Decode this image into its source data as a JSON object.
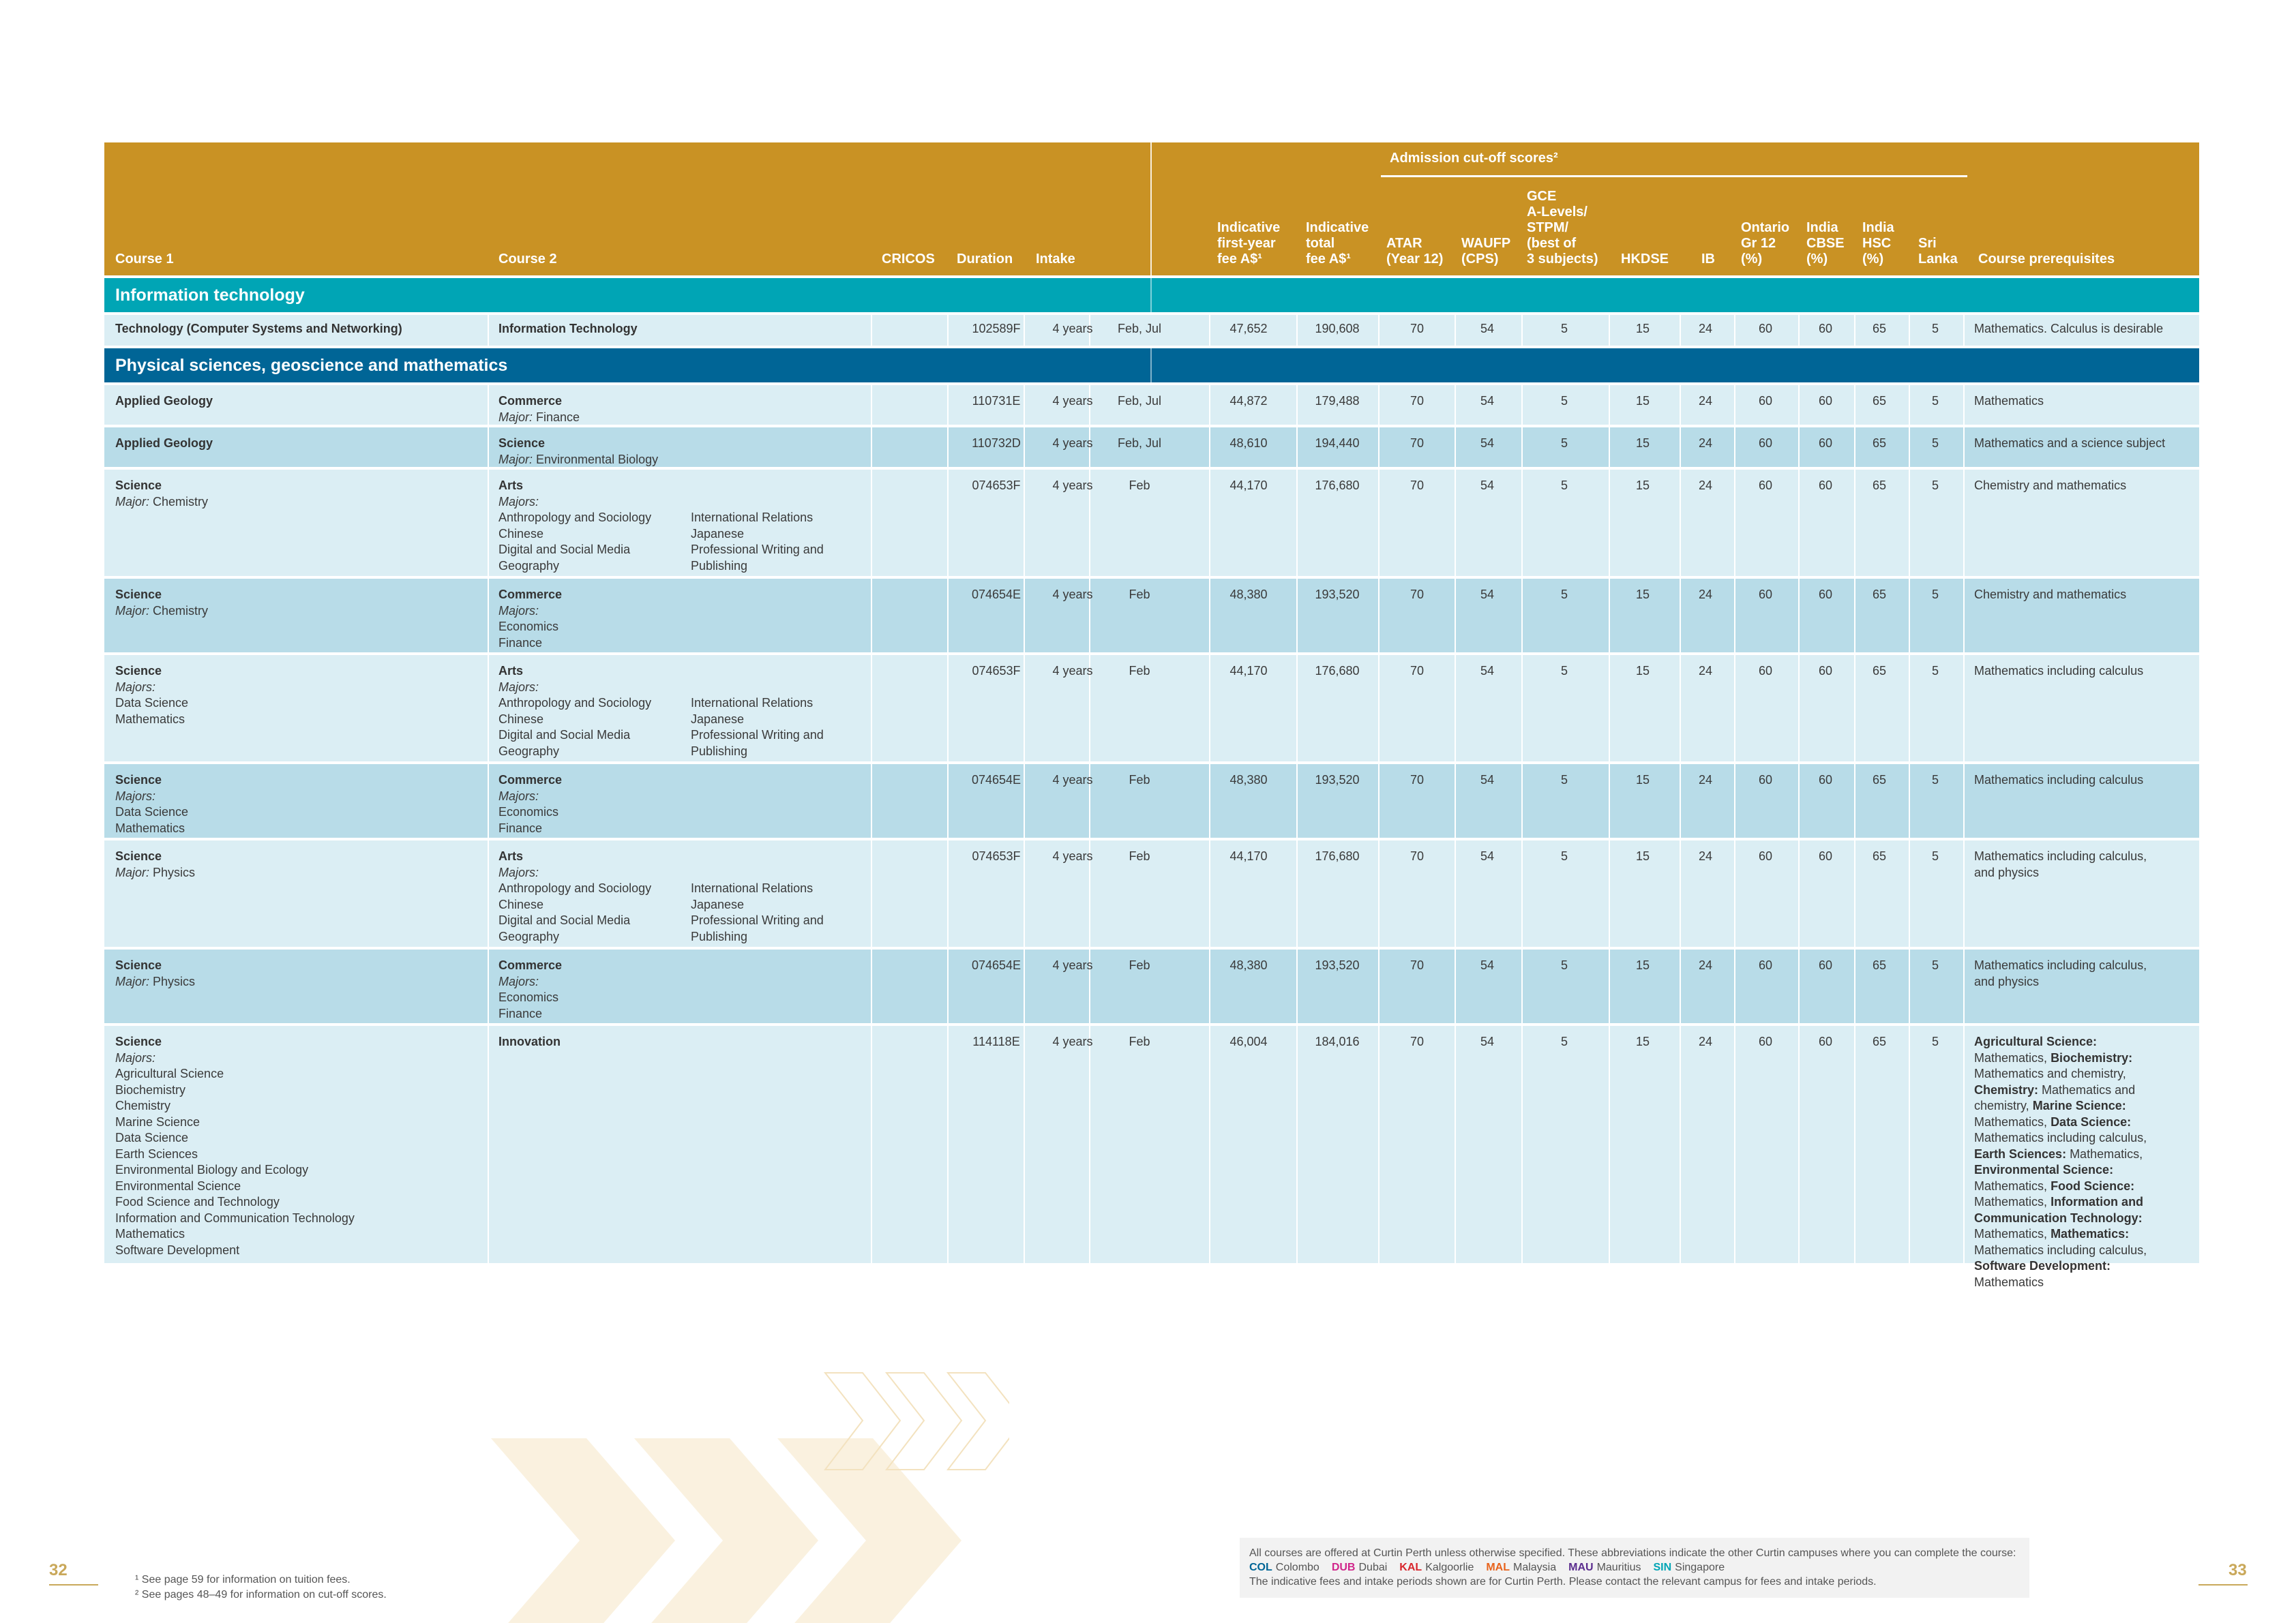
{
  "header": {
    "course1": "Course 1",
    "course2": "Course 2",
    "cricos": "CRICOS",
    "duration": "Duration",
    "intake": "Intake",
    "fee1": "Indicative\nfirst-year\nfee A$¹",
    "fee2": "Indicative\ntotal\nfee A$¹",
    "admission": "Admission cut-off scores²",
    "atar": "ATAR\n(Year 12)",
    "waufp": "WAUFP\n(CPS)",
    "gce": "GCE\nA-Levels/\nSTPM/\n(best of\n3 subjects)",
    "hkdse": "HKDSE",
    "ib": "IB",
    "ontario": "Ontario\nGr 12\n(%)",
    "cbse": "India\nCBSE\n(%)",
    "hsc": "India\nHSC\n(%)",
    "srilanka": "Sri\nLanka",
    "prereq": "Course prerequisites"
  },
  "sections": {
    "it": "Information technology",
    "ps": "Physical sciences, geoscience and mathematics"
  },
  "rows": [
    {
      "c1": "Technology (Computer Systems and Networking)",
      "c1sub": "",
      "c1list": "",
      "c2": "Information Technology",
      "c2sub": "",
      "c2listA": "",
      "c2listB": "",
      "cricos": "102589F",
      "duration": "4 years",
      "intake": "Feb, Jul",
      "fee1": "47,652",
      "fee2": "190,608",
      "atar": "70",
      "waufp": "54",
      "gce": "5",
      "hkdse": "15",
      "ib": "24",
      "ontario": "60",
      "cbse": "60",
      "hsc": "65",
      "sri": "5",
      "prereq": "Mathematics. Calculus is desirable"
    },
    {
      "c1": "Applied Geology",
      "c1sub": "",
      "c1list": "",
      "c2": "Commerce",
      "c2subLabel": "Major:",
      "c2sub": " Finance",
      "c2listA": "",
      "c2listB": "",
      "cricos": "110731E",
      "duration": "4 years",
      "intake": "Feb, Jul",
      "fee1": "44,872",
      "fee2": "179,488",
      "atar": "70",
      "waufp": "54",
      "gce": "5",
      "hkdse": "15",
      "ib": "24",
      "ontario": "60",
      "cbse": "60",
      "hsc": "65",
      "sri": "5",
      "prereq": "Mathematics"
    },
    {
      "c1": "Applied Geology",
      "c1sub": "",
      "c1list": "",
      "c2": "Science",
      "c2subLabel": "Major:",
      "c2sub": " Environmental Biology",
      "c2listA": "",
      "c2listB": "",
      "cricos": "110732D",
      "duration": "4 years",
      "intake": "Feb, Jul",
      "fee1": "48,610",
      "fee2": "194,440",
      "atar": "70",
      "waufp": "54",
      "gce": "5",
      "hkdse": "15",
      "ib": "24",
      "ontario": "60",
      "cbse": "60",
      "hsc": "65",
      "sri": "5",
      "prereq": "Mathematics and a science subject"
    },
    {
      "c1": "Science",
      "c1subLabel": "Major:",
      "c1sub": " Chemistry",
      "c1list": "",
      "c2": "Arts",
      "c2subLabel": "Majors:",
      "c2sub": "",
      "c2listA": "Anthropology and Sociology\nChinese\nDigital and Social Media\nGeography",
      "c2listB": "International Relations\nJapanese\nProfessional Writing and\nPublishing",
      "cricos": "074653F",
      "duration": "4 years",
      "intake": "Feb",
      "fee1": "44,170",
      "fee2": "176,680",
      "atar": "70",
      "waufp": "54",
      "gce": "5",
      "hkdse": "15",
      "ib": "24",
      "ontario": "60",
      "cbse": "60",
      "hsc": "65",
      "sri": "5",
      "prereq": "Chemistry and mathematics"
    },
    {
      "c1": "Science",
      "c1subLabel": "Major:",
      "c1sub": " Chemistry",
      "c1list": "",
      "c2": "Commerce",
      "c2subLabel": "Majors:",
      "c2sub": "",
      "c2listA": "Economics\nFinance",
      "c2listB": "",
      "cricos": "074654E",
      "duration": "4 years",
      "intake": "Feb",
      "fee1": "48,380",
      "fee2": "193,520",
      "atar": "70",
      "waufp": "54",
      "gce": "5",
      "hkdse": "15",
      "ib": "24",
      "ontario": "60",
      "cbse": "60",
      "hsc": "65",
      "sri": "5",
      "prereq": "Chemistry and mathematics"
    },
    {
      "c1": "Science",
      "c1subLabel": "Majors:",
      "c1sub": "",
      "c1list": "Data Science\nMathematics",
      "c2": "Arts",
      "c2subLabel": "Majors:",
      "c2sub": "",
      "c2listA": "Anthropology and Sociology\nChinese\nDigital and Social Media\nGeography",
      "c2listB": "International Relations\nJapanese\nProfessional Writing and\nPublishing",
      "cricos": "074653F",
      "duration": "4 years",
      "intake": "Feb",
      "fee1": "44,170",
      "fee2": "176,680",
      "atar": "70",
      "waufp": "54",
      "gce": "5",
      "hkdse": "15",
      "ib": "24",
      "ontario": "60",
      "cbse": "60",
      "hsc": "65",
      "sri": "5",
      "prereq": "Mathematics including calculus"
    },
    {
      "c1": "Science",
      "c1subLabel": "Majors:",
      "c1sub": "",
      "c1list": "Data Science\nMathematics",
      "c2": "Commerce",
      "c2subLabel": "Majors:",
      "c2sub": "",
      "c2listA": "Economics\nFinance",
      "c2listB": "",
      "cricos": "074654E",
      "duration": "4 years",
      "intake": "Feb",
      "fee1": "48,380",
      "fee2": "193,520",
      "atar": "70",
      "waufp": "54",
      "gce": "5",
      "hkdse": "15",
      "ib": "24",
      "ontario": "60",
      "cbse": "60",
      "hsc": "65",
      "sri": "5",
      "prereq": "Mathematics including calculus"
    },
    {
      "c1": "Science",
      "c1subLabel": "Major:",
      "c1sub": " Physics",
      "c1list": "",
      "c2": "Arts",
      "c2subLabel": "Majors:",
      "c2sub": "",
      "c2listA": "Anthropology and Sociology\nChinese\nDigital and Social Media\nGeography",
      "c2listB": "International Relations\nJapanese\nProfessional Writing and\nPublishing",
      "cricos": "074653F",
      "duration": "4 years",
      "intake": "Feb",
      "fee1": "44,170",
      "fee2": "176,680",
      "atar": "70",
      "waufp": "54",
      "gce": "5",
      "hkdse": "15",
      "ib": "24",
      "ontario": "60",
      "cbse": "60",
      "hsc": "65",
      "sri": "5",
      "prereq": "Mathematics including calculus,\nand physics"
    },
    {
      "c1": "Science",
      "c1subLabel": "Major:",
      "c1sub": " Physics",
      "c1list": "",
      "c2": "Commerce",
      "c2subLabel": "Majors:",
      "c2sub": "",
      "c2listA": "Economics\nFinance",
      "c2listB": "",
      "cricos": "074654E",
      "duration": "4 years",
      "intake": "Feb",
      "fee1": "48,380",
      "fee2": "193,520",
      "atar": "70",
      "waufp": "54",
      "gce": "5",
      "hkdse": "15",
      "ib": "24",
      "ontario": "60",
      "cbse": "60",
      "hsc": "65",
      "sri": "5",
      "prereq": "Mathematics including calculus,\nand physics"
    },
    {
      "c1": "Science",
      "c1subLabel": "Majors:",
      "c1sub": "",
      "c1list": "Agricultural Science\nBiochemistry\nChemistry\nMarine Science\nData Science\nEarth Sciences\nEnvironmental Biology and Ecology\nEnvironmental Science\nFood Science and Technology\nInformation and Communication Technology\nMathematics\nSoftware Development",
      "c2": "Innovation",
      "c2sub": "",
      "c2listA": "",
      "c2listB": "",
      "cricos": "114118E",
      "duration": "4 years",
      "intake": "Feb",
      "fee1": "46,004",
      "fee2": "184,016",
      "atar": "70",
      "waufp": "54",
      "gce": "5",
      "hkdse": "15",
      "ib": "24",
      "ontario": "60",
      "cbse": "60",
      "hsc": "65",
      "sri": "5",
      "prereq": ""
    }
  ],
  "last_prereq": [
    {
      "b": "Agricultural Science:",
      "t": " Mathematics,"
    },
    {
      "b": "Biochemistry:",
      "t": " Mathematics and chemistry,"
    },
    {
      "b": "Chemistry:",
      "t": " Mathematics and chemistry,"
    },
    {
      "b": "Marine Science:",
      "t": " Mathematics,"
    },
    {
      "b": "Data Science:",
      "t": " Mathematics including calculus,"
    },
    {
      "b": "Earth Sciences:",
      "t": " Mathematics,"
    },
    {
      "b": "Environmental Science:",
      "t": " Mathematics,"
    },
    {
      "b": "Food Science:",
      "t": " Mathematics,"
    },
    {
      "b": "Information and Communication Technology:",
      "t": " Mathematics,"
    },
    {
      "b": "Mathematics:",
      "t": " Mathematics including calculus,"
    },
    {
      "b": "Software Development:",
      "t": " Mathematics"
    }
  ],
  "footer": {
    "page_left": "32",
    "page_right": "33",
    "note1": "¹ See page 59 for information on tuition fees.",
    "note2": "² See pages 48–49 for information on cut-off scores.",
    "box_line1": "All courses are offered at Curtin Perth unless otherwise specified. These abbreviations indicate the other Curtin campuses where you can complete the course:",
    "campuses": [
      {
        "code": "COL",
        "name": "Colombo",
        "color": "#006596"
      },
      {
        "code": "DUB",
        "name": "Dubai",
        "color": "#d0268b"
      },
      {
        "code": "KAL",
        "name": "Kalgoorlie",
        "color": "#d8262d"
      },
      {
        "code": "MAL",
        "name": "Malaysia",
        "color": "#e8631c"
      },
      {
        "code": "MAU",
        "name": "Mauritius",
        "color": "#5b2d8e"
      },
      {
        "code": "SIN",
        "name": "Singapore",
        "color": "#00a5b5"
      }
    ],
    "box_line3": "The indicative fees and intake periods shown are for Curtin Perth. Please contact the relevant campus for fees and intake periods."
  }
}
